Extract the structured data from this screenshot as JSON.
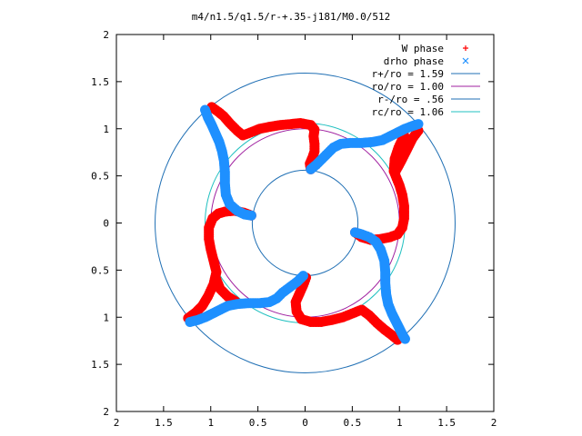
{
  "chart_data": {
    "type": "scatter",
    "title": "m4/n1.5/q1.5/r-+.35-j181/M0.0/512",
    "xlim": [
      -2,
      2
    ],
    "ylim": [
      -2,
      2
    ],
    "x_tick_values": [
      -2,
      -1.5,
      -1,
      -0.5,
      0,
      0.5,
      1,
      1.5,
      2
    ],
    "x_tick_labels": [
      "2",
      "1.5",
      "1",
      "0.5",
      "0",
      "0.5",
      "1",
      "1.5",
      "2"
    ],
    "y_tick_values": [
      2,
      1.5,
      1,
      0.5,
      0,
      -0.5,
      -1,
      -1.5,
      -2
    ],
    "y_tick_labels": [
      "2",
      "1.5",
      "1",
      "0.5",
      "0",
      "0.5",
      "1",
      "1.5",
      "2"
    ],
    "grid": false,
    "legend_position": "top-right",
    "colors": {
      "w_phase": "#ff0000",
      "drho_phase": "#1e90ff",
      "r_plus": "#1f6fb4",
      "ro": "#a020a0",
      "r_minus": "#1f6fb4",
      "rc": "#20c0c0",
      "axes": "#000000"
    },
    "legend": [
      {
        "key": "w_phase",
        "label": "W phase",
        "marker": "+"
      },
      {
        "key": "drho_phase",
        "label": "drho phase",
        "marker": "x"
      },
      {
        "key": "r_plus",
        "label": "r+/ro = 1.59",
        "marker": "line"
      },
      {
        "key": "ro",
        "label": "ro/ro = 1.00",
        "marker": "line"
      },
      {
        "key": "r_minus",
        "label": "r-/ro = .56",
        "marker": "line"
      },
      {
        "key": "rc",
        "label": "rc/ro = 1.06",
        "marker": "line"
      }
    ],
    "circles": [
      {
        "key": "r_plus",
        "r": 1.59
      },
      {
        "key": "ro",
        "r": 1.0
      },
      {
        "key": "r_minus",
        "r": 0.56
      },
      {
        "key": "rc",
        "r": 1.06
      }
    ],
    "series": [
      {
        "name": "W phase",
        "key": "w_phase",
        "points": [
          [
            0.06,
            0.57
          ],
          [
            0.05,
            0.63
          ],
          [
            0.08,
            0.7
          ],
          [
            0.1,
            0.76
          ],
          [
            0.1,
            0.84
          ],
          [
            0.09,
            0.92
          ],
          [
            0.1,
            0.99
          ],
          [
            0.06,
            1.04
          ],
          [
            -0.05,
            1.06
          ],
          [
            -0.15,
            1.05
          ],
          [
            -0.26,
            1.04
          ],
          [
            -0.38,
            1.02
          ],
          [
            -0.48,
            1.0
          ],
          [
            -0.58,
            0.96
          ],
          [
            -0.66,
            0.93
          ],
          [
            -0.72,
            0.98
          ],
          [
            -0.8,
            1.06
          ],
          [
            -0.86,
            1.13
          ],
          [
            -0.92,
            1.18
          ],
          [
            -0.99,
            1.23
          ],
          [
            1.05,
            0.93
          ],
          [
            0.99,
            0.8
          ],
          [
            0.95,
            0.68
          ],
          [
            0.94,
            0.55
          ],
          [
            1.0,
            0.4
          ],
          [
            1.03,
            0.3
          ],
          [
            1.05,
            0.18
          ],
          [
            1.05,
            0.05
          ],
          [
            1.03,
            -0.05
          ],
          [
            0.98,
            -0.12
          ],
          [
            0.9,
            -0.15
          ],
          [
            0.8,
            -0.17
          ],
          [
            0.7,
            -0.18
          ],
          [
            0.6,
            -0.15
          ],
          [
            0.53,
            -0.1
          ],
          [
            0.96,
            0.55
          ],
          [
            1.02,
            0.66
          ],
          [
            1.08,
            0.78
          ],
          [
            1.14,
            0.9
          ],
          [
            1.2,
            0.98
          ],
          [
            -0.57,
            0.08
          ],
          [
            -0.65,
            0.11
          ],
          [
            -0.75,
            0.13
          ],
          [
            -0.85,
            0.12
          ],
          [
            -0.92,
            0.1
          ],
          [
            -0.98,
            0.05
          ],
          [
            -1.02,
            -0.05
          ],
          [
            -1.02,
            -0.17
          ],
          [
            -1.0,
            -0.28
          ],
          [
            -0.97,
            -0.4
          ],
          [
            -0.94,
            -0.52
          ],
          [
            -0.97,
            -0.65
          ],
          [
            -1.03,
            -0.78
          ],
          [
            -1.09,
            -0.88
          ],
          [
            -1.16,
            -0.95
          ],
          [
            -1.24,
            -1.01
          ],
          [
            -0.94,
            -0.6
          ],
          [
            -0.9,
            -0.7
          ],
          [
            -0.82,
            -0.78
          ],
          [
            -0.74,
            -0.83
          ],
          [
            0.01,
            -0.58
          ],
          [
            -0.02,
            -0.66
          ],
          [
            -0.06,
            -0.75
          ],
          [
            -0.1,
            -0.84
          ],
          [
            -0.09,
            -0.94
          ],
          [
            -0.04,
            -1.02
          ],
          [
            0.06,
            -1.05
          ],
          [
            0.17,
            -1.05
          ],
          [
            0.28,
            -1.03
          ],
          [
            0.4,
            -1.0
          ],
          [
            0.5,
            -0.96
          ],
          [
            0.6,
            -0.92
          ],
          [
            0.68,
            -0.98
          ],
          [
            0.76,
            -1.06
          ],
          [
            0.84,
            -1.13
          ],
          [
            0.92,
            -1.19
          ],
          [
            0.98,
            -1.24
          ]
        ]
      },
      {
        "name": "drho phase",
        "key": "drho_phase",
        "points": [
          [
            0.06,
            0.57
          ],
          [
            0.12,
            0.62
          ],
          [
            0.18,
            0.68
          ],
          [
            0.24,
            0.74
          ],
          [
            0.3,
            0.8
          ],
          [
            0.38,
            0.84
          ],
          [
            0.48,
            0.85
          ],
          [
            0.6,
            0.85
          ],
          [
            0.72,
            0.86
          ],
          [
            0.82,
            0.88
          ],
          [
            0.9,
            0.92
          ],
          [
            0.98,
            0.96
          ],
          [
            1.06,
            1.0
          ],
          [
            1.14,
            1.03
          ],
          [
            1.2,
            1.05
          ],
          [
            -0.57,
            0.08
          ],
          [
            -0.64,
            0.09
          ],
          [
            -0.72,
            0.13
          ],
          [
            -0.8,
            0.2
          ],
          [
            -0.84,
            0.3
          ],
          [
            -0.85,
            0.42
          ],
          [
            -0.85,
            0.54
          ],
          [
            -0.86,
            0.66
          ],
          [
            -0.88,
            0.76
          ],
          [
            -0.91,
            0.86
          ],
          [
            -0.95,
            0.95
          ],
          [
            -0.99,
            1.04
          ],
          [
            -1.03,
            1.12
          ],
          [
            -1.06,
            1.2
          ],
          [
            0.53,
            -0.1
          ],
          [
            0.6,
            -0.12
          ],
          [
            0.68,
            -0.15
          ],
          [
            0.75,
            -0.2
          ],
          [
            0.8,
            -0.28
          ],
          [
            0.84,
            -0.4
          ],
          [
            0.85,
            -0.52
          ],
          [
            0.85,
            -0.64
          ],
          [
            0.86,
            -0.76
          ],
          [
            0.88,
            -0.86
          ],
          [
            0.92,
            -0.96
          ],
          [
            0.96,
            -1.04
          ],
          [
            1.0,
            -1.12
          ],
          [
            1.04,
            -1.2
          ],
          [
            1.06,
            -1.23
          ],
          [
            -0.02,
            -0.56
          ],
          [
            -0.08,
            -0.62
          ],
          [
            -0.16,
            -0.68
          ],
          [
            -0.24,
            -0.74
          ],
          [
            -0.3,
            -0.8
          ],
          [
            -0.38,
            -0.84
          ],
          [
            -0.48,
            -0.85
          ],
          [
            -0.6,
            -0.85
          ],
          [
            -0.72,
            -0.86
          ],
          [
            -0.82,
            -0.88
          ],
          [
            -0.9,
            -0.92
          ],
          [
            -0.98,
            -0.96
          ],
          [
            -1.06,
            -1.0
          ],
          [
            -1.14,
            -1.03
          ],
          [
            -1.22,
            -1.05
          ]
        ]
      }
    ]
  }
}
